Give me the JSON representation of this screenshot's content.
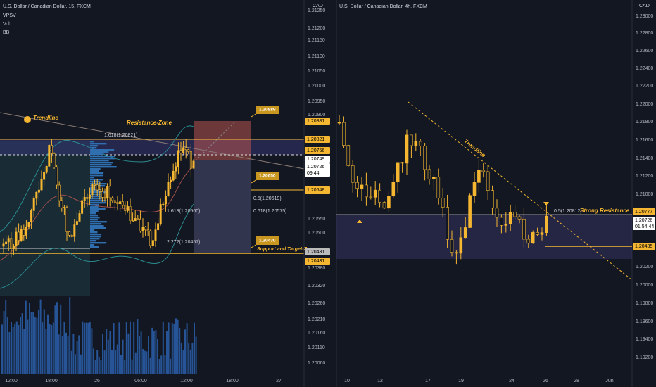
{
  "left": {
    "title": "U.S. Dollar / Canadian Dollar, 15, FXCM",
    "indicators": [
      "VPSV",
      "Vol",
      "BB"
    ],
    "currency": "CAD",
    "axis_labels": [
      "1.21250",
      "1.21200",
      "1.21150",
      "1.21100",
      "1.21050",
      "1.21000",
      "1.20950",
      "1.20900",
      "1.20550",
      "1.20500",
      "1.20380",
      "1.20320",
      "1.20260",
      "1.20210",
      "1.20160",
      "1.20110",
      "1.20060"
    ],
    "price_tags": [
      "1.20881",
      "1.20821",
      "1.20766",
      "1.20749",
      "1.20726",
      "09:44",
      "1.20648",
      "1.20431",
      "1.20431"
    ],
    "time_labels": [
      "12:00",
      "18:00",
      "26",
      "06:00",
      "12:00",
      "18:00",
      "27"
    ],
    "annotations": {
      "trendline": "Trendline",
      "resistance": "Resistance-Zone",
      "fib_1618a": "1.618(1.20821)",
      "fib_05": "0.5(1.20619)",
      "fib_0618": "0.618(1.20575)",
      "fib_1618b": "1.618(1.20560)",
      "fib_2272": "2.272(1.20457)",
      "support": "Support and Target-Zone"
    },
    "callouts": [
      "1.20889",
      "1.20650",
      "1.20430"
    ]
  },
  "right": {
    "title": "U.S. Dollar / Canadian Dollar, 4h, FXCM",
    "currency": "CAD",
    "axis_labels": [
      "1.23000",
      "1.22800",
      "1.22600",
      "1.22400",
      "1.22200",
      "1.22000",
      "1.21800",
      "1.21600",
      "1.21400",
      "1.21200",
      "1.21000",
      "1.20200",
      "1.20000",
      "1.19800",
      "1.19600",
      "1.19400",
      "1.19200"
    ],
    "price_tags": [
      "1.20777",
      "1.20726",
      "01:54:44",
      "1.20435"
    ],
    "time_labels": [
      "10",
      "12",
      "17",
      "19",
      "24",
      "26",
      "28",
      "Jun"
    ],
    "annotations": {
      "trendline": "Trendline",
      "fib_05": "0.5(1.20812)",
      "resistance": "Strong Resistance"
    }
  }
}
